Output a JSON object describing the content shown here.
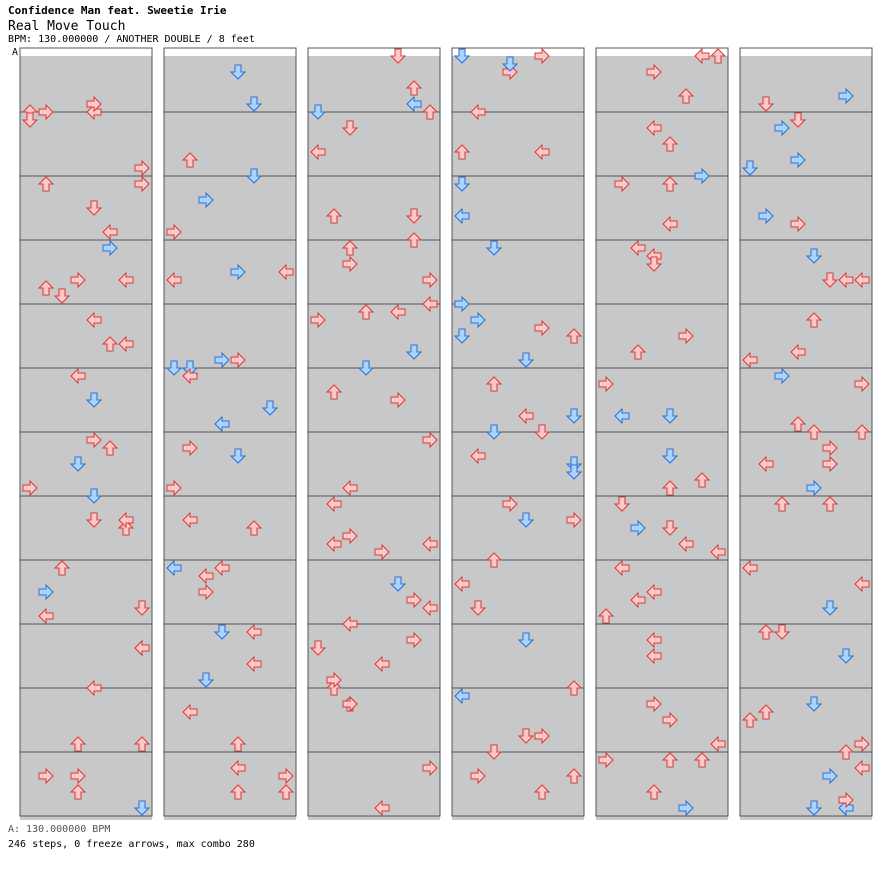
{
  "header": {
    "artist": "Confidence Man feat. Sweetie Irie",
    "title": "Real Move Touch",
    "meta": "BPM: 130.000000 / ANOTHER DOUBLE / 8 feet"
  },
  "footer": {
    "bpm_line": "A: 130.000000 BPM",
    "stats": "246 steps, 0 freeze arrows, max combo 280"
  },
  "bpm_marker": "A",
  "chart": {
    "columns": 6,
    "measures_per_column": 12,
    "rows_per_measure": 8,
    "lanes_per_row": 8,
    "colors": {
      "shade": "#c8c8c8",
      "line": "#555555",
      "red_fill": "#ffc8c8",
      "red_stroke": "#d03c3c",
      "blue_fill": "#a8d4ff",
      "blue_stroke": "#2a6fd0"
    }
  }
}
